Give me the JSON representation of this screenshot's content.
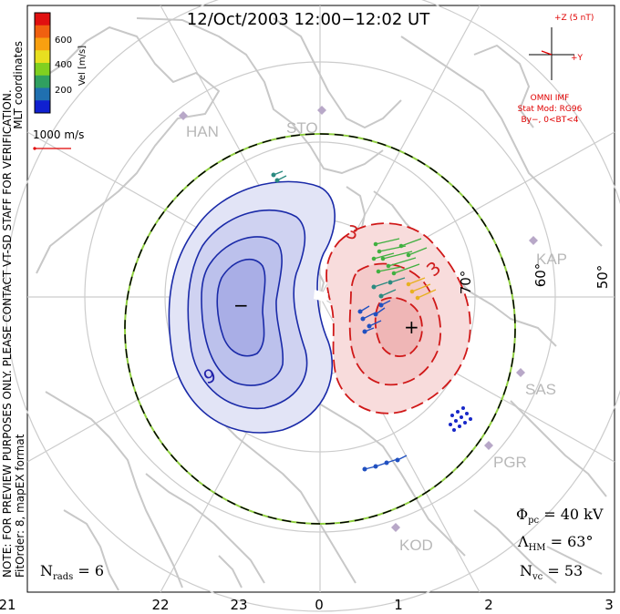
{
  "title": "12/Oct/2003 12:00−12:02 UT",
  "left_notes": {
    "line1": "NOTE: FOR PREVIEW PURPOSES ONLY. PLEASE CONTACT VT-SD STAFF FOR VERIFICATION.",
    "line2": "FitOrder: 8, mapEX format"
  },
  "coordinates_label": "MLT coordinates",
  "colorbar": {
    "label": "Vel [m/s]",
    "ticks": [
      "600",
      "400",
      "200"
    ],
    "colors": [
      "#e01010",
      "#f06010",
      "#f8a010",
      "#e8e020",
      "#80d020",
      "#30a060",
      "#2070b0",
      "#1020d0"
    ]
  },
  "vector_scale": {
    "label": "1000 m/s",
    "color": "#e00000"
  },
  "imf": {
    "z_label": "+Z (5 nT)",
    "y_label": "+Y",
    "source": "OMNI IMF",
    "model_line1": "Stat Mod: RG96",
    "model_line2": "By−, 0<BT<4"
  },
  "mlt_labels": [
    "21",
    "22",
    "23",
    "0",
    "1",
    "2",
    "3"
  ],
  "lat_labels": [
    "70°",
    "60°",
    "50°"
  ],
  "stations": [
    "HAN",
    "STO",
    "KAP",
    "SAS",
    "PGR",
    "KOD"
  ],
  "contour_labels": {
    "neg_value": "9",
    "pos_value_a": "3",
    "pos_value_b": "3",
    "neg_symbol": "−",
    "pos_symbol": "+"
  },
  "stats": {
    "phi_symbol": "Φ",
    "phi_sub": "pc",
    "phi_value": " = 40 kV",
    "lambda_symbol": "Λ",
    "lambda_sub": "HM",
    "lambda_value": " = 63°",
    "n_symbol": "N",
    "nvc_sub": "vc",
    "nvc_value": " = 53",
    "nrads_sub": "rads",
    "nrads_value": " = 6"
  },
  "colors": {
    "neg_contour": "#1a2aa8",
    "pos_contour": "#d01818",
    "neg_fill": "#b8bef0",
    "pos_fill": "#f4b8b8",
    "coast": "#c8c8c8",
    "grid": "#c8c8c8",
    "station": "#b8a8c8"
  }
}
